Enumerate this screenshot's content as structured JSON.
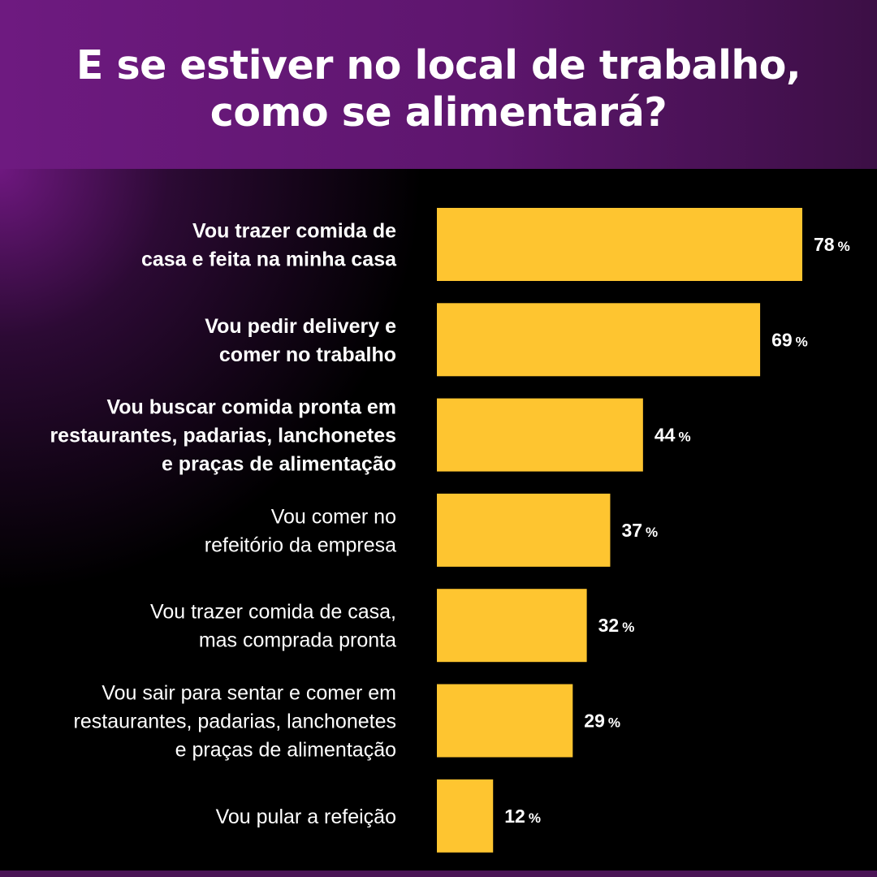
{
  "header": {
    "title_line1": "E se estiver no local de trabalho,",
    "title_line2": "como se alimentará?"
  },
  "colors": {
    "header_bg": "#6e1a80",
    "bar": "#fec530",
    "text": "#ffffff",
    "panel_bg": "#000000"
  },
  "chart_data": {
    "type": "bar",
    "orientation": "horizontal",
    "title": "E se estiver no local de trabalho, como se alimentará?",
    "unit": "%",
    "xlim": [
      0,
      100
    ],
    "grid": false,
    "legend": "none",
    "categories": [
      {
        "lines": [
          "Vou trazer comida de",
          "casa e feita na minha casa"
        ],
        "bold": true
      },
      {
        "lines": [
          "Vou pedir delivery e",
          "comer no trabalho"
        ],
        "bold": true
      },
      {
        "lines": [
          "Vou buscar comida pronta em",
          "restaurantes, padarias, lanchonetes",
          "e praças de alimentação"
        ],
        "bold": true
      },
      {
        "lines": [
          "Vou comer no",
          "refeitório da empresa"
        ],
        "bold": false
      },
      {
        "lines": [
          "Vou trazer comida de casa,",
          "mas comprada pronta"
        ],
        "bold": false
      },
      {
        "lines": [
          "Vou sair para sentar e comer em",
          "restaurantes, padarias, lanchonetes",
          "e praças de alimentação"
        ],
        "bold": false
      },
      {
        "lines": [
          "Vou pular a refeição"
        ],
        "bold": false
      }
    ],
    "values": [
      78,
      69,
      44,
      37,
      32,
      29,
      12
    ]
  }
}
